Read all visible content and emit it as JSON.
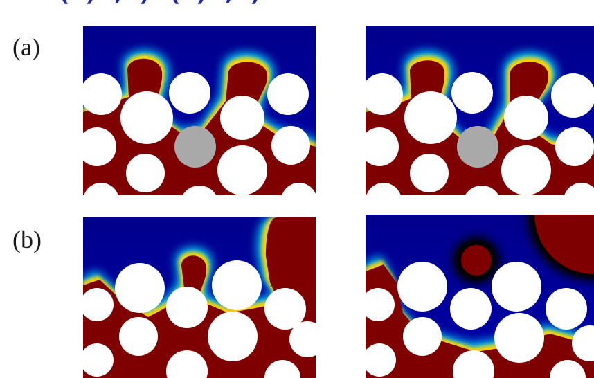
{
  "figure": {
    "row_labels": [
      "(a)",
      "(b)"
    ],
    "cropped_heading": "(  )          ,  )          (  )         ,  )",
    "colors": {
      "fluid_invading": "#7f0000",
      "fluid_displaced": "#00008b",
      "grain": "#ffffff",
      "fixed_grain": "#a9a9a9",
      "interface": [
        "#00008b",
        "#0060ff",
        "#00e0ff",
        "#a0ff60",
        "#ffe000",
        "#ff4000",
        "#7f0000"
      ]
    },
    "panels": [
      {
        "row": "(a)",
        "column": 1,
        "has_gray_grain": true
      },
      {
        "row": "(a)",
        "column": 2,
        "has_gray_grain": true
      },
      {
        "row": "(b)",
        "column": 1,
        "has_gray_grain": false
      },
      {
        "row": "(b)",
        "column": 2,
        "has_gray_grain": false
      }
    ]
  }
}
